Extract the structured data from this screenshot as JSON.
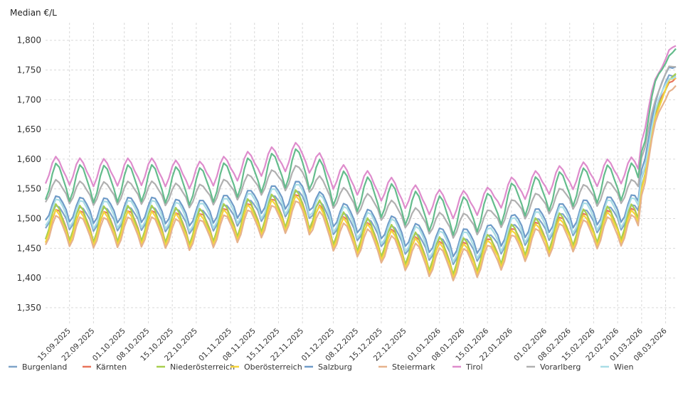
{
  "chart_data": {
    "type": "line",
    "title": "",
    "ylabel": "Median €/L",
    "xlabel": "",
    "ylim": [
      1.32,
      1.82
    ],
    "yticks": [
      "1,350",
      "1,400",
      "1,450",
      "1,500",
      "1,550",
      "1,600",
      "1,650",
      "1,700",
      "1,750",
      "1,800"
    ],
    "ytick_values": [
      1.35,
      1.4,
      1.45,
      1.5,
      1.55,
      1.6,
      1.65,
      1.7,
      1.75,
      1.8
    ],
    "x_start": "2025-09-08",
    "x_end": "2026-03-11",
    "xticks": [
      "15.09.2025",
      "22.09.2025",
      "01.10.2025",
      "08.10.2025",
      "15.10.2025",
      "22.10.2025",
      "01.11.2025",
      "08.11.2025",
      "15.11.2025",
      "22.11.2025",
      "01.12.2025",
      "08.12.2025",
      "15.12.2025",
      "22.12.2025",
      "01.01.2026",
      "08.01.2026",
      "15.01.2026",
      "22.01.2026",
      "01.02.2026",
      "08.02.2026",
      "15.02.2026",
      "22.02.2026",
      "01.03.2026",
      "08.03.2026"
    ],
    "legend_position": "bottom",
    "series": [
      {
        "name": "Burgenland",
        "color": "#7ea4c9",
        "base": 1.497,
        "amp": 0.03,
        "surge": 0.245
      },
      {
        "name": "Kärnten",
        "color": "#e8745a",
        "base": 1.485,
        "amp": 0.03,
        "surge": 0.25
      },
      {
        "name": "Niederösterreich",
        "color": "#a8cf4e",
        "base": 1.487,
        "amp": 0.035,
        "surge": 0.25
      },
      {
        "name": "Oberösterreich",
        "color": "#f5d43c",
        "base": 1.478,
        "amp": 0.04,
        "surge": 0.255
      },
      {
        "name": "Salzburg",
        "color": "#6f9bc8",
        "base": 1.512,
        "amp": 0.03,
        "surge": 0.245
      },
      {
        "name": "Steiermark",
        "color": "#e6b28c",
        "base": 1.475,
        "amp": 0.028,
        "surge": 0.245
      },
      {
        "name": "Tirol",
        "color": "#de8ccc",
        "base": 1.575,
        "amp": 0.028,
        "surge": 0.21
      },
      {
        "name": "Vorarlberg",
        "color": "#b0b0b0",
        "base": 1.54,
        "amp": 0.03,
        "surge": 0.215
      },
      {
        "name": "Wien",
        "color": "#a9dde6",
        "base": 1.505,
        "amp": 0.03,
        "surge": 0.235
      },
      {
        "name": "",
        "color": "#64bc8c",
        "base": 1.555,
        "amp": 0.035,
        "surge": 0.225
      }
    ],
    "trend": [
      {
        "date": "2025-09-08",
        "offset": 0.0
      },
      {
        "date": "2025-09-22",
        "offset": -0.005
      },
      {
        "date": "2025-10-08",
        "offset": -0.003
      },
      {
        "date": "2025-10-22",
        "offset": -0.01
      },
      {
        "date": "2025-11-08",
        "offset": 0.01
      },
      {
        "date": "2025-11-22",
        "offset": 0.025
      },
      {
        "date": "2025-12-01",
        "offset": -0.01
      },
      {
        "date": "2025-12-15",
        "offset": -0.03
      },
      {
        "date": "2025-12-26",
        "offset": -0.05
      },
      {
        "date": "2026-01-05",
        "offset": -0.06
      },
      {
        "date": "2026-01-15",
        "offset": -0.052
      },
      {
        "date": "2026-01-24",
        "offset": -0.03
      },
      {
        "date": "2026-02-08",
        "offset": -0.012
      },
      {
        "date": "2026-02-22",
        "offset": -0.002
      },
      {
        "date": "2026-02-28",
        "offset": 0.0
      },
      {
        "date": "2026-03-11",
        "offset": 0.0
      }
    ],
    "surge_start": "2026-02-28",
    "surge_peak": "2026-03-09"
  }
}
